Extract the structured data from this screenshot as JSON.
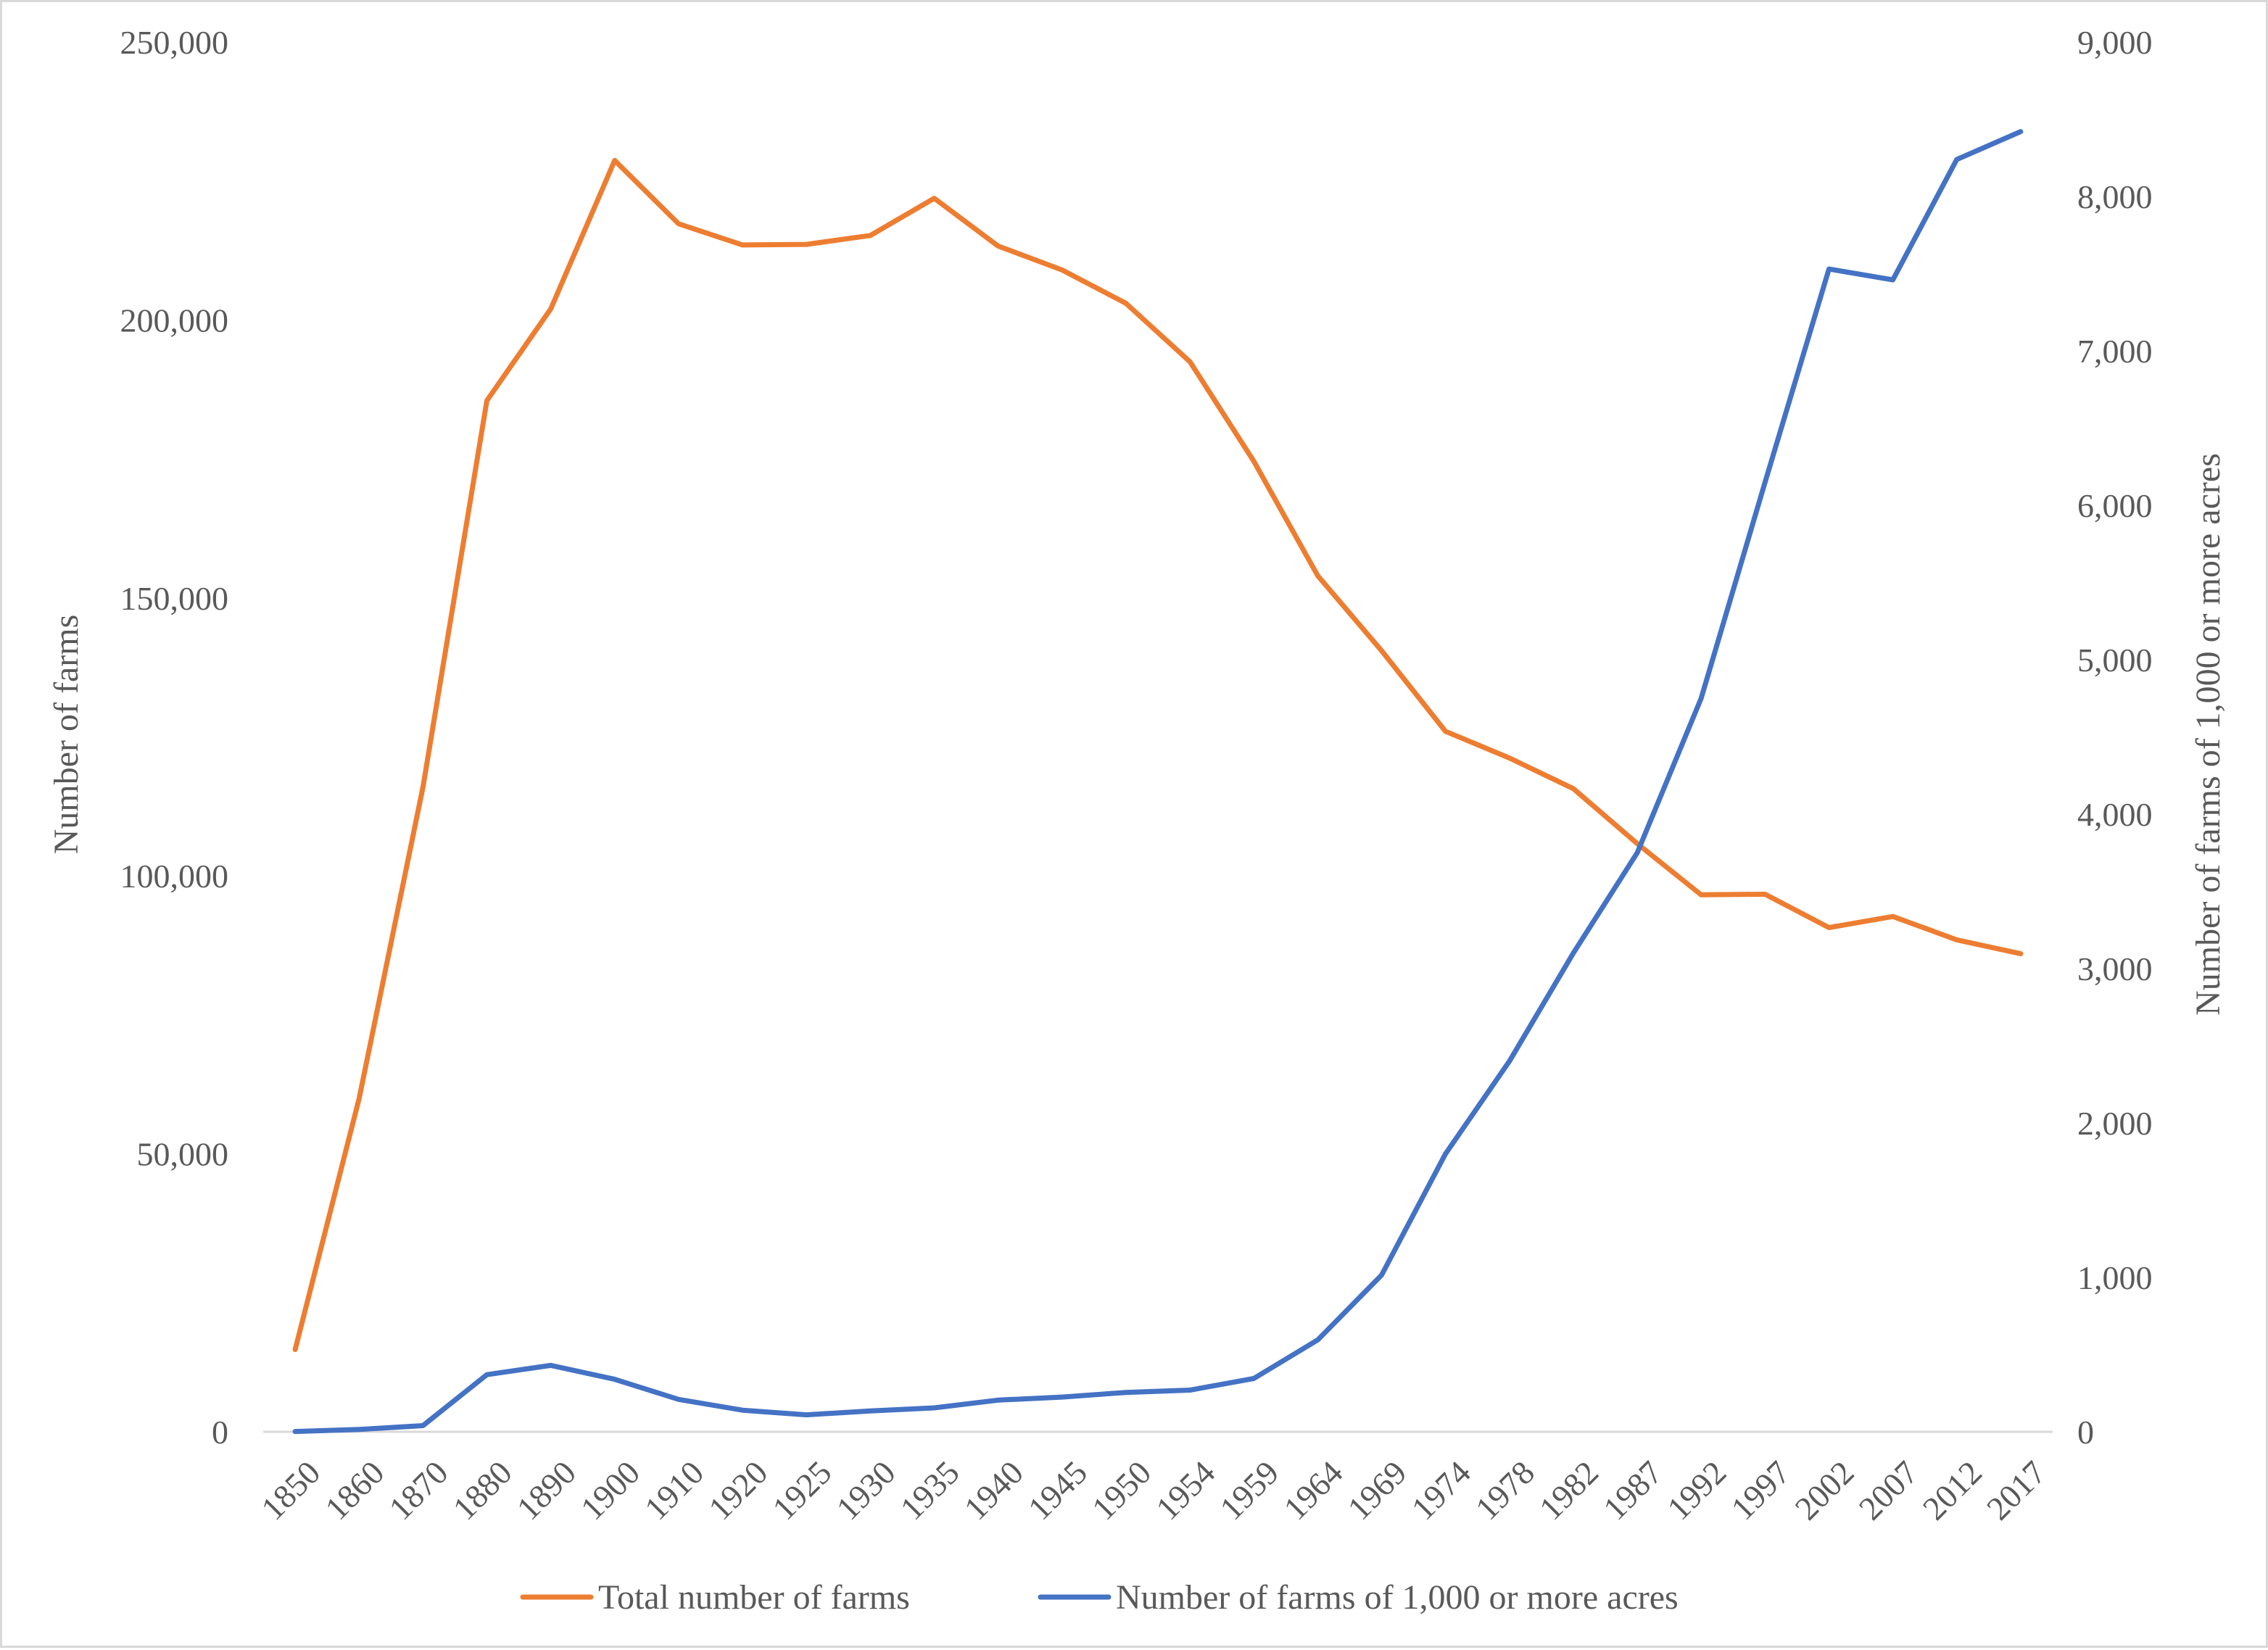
{
  "chart_data": {
    "type": "line",
    "categories": [
      "1850",
      "1860",
      "1870",
      "1880",
      "1890",
      "1900",
      "1910",
      "1920",
      "1925",
      "1930",
      "1935",
      "1940",
      "1945",
      "1950",
      "1954",
      "1959",
      "1964",
      "1969",
      "1974",
      "1978",
      "1982",
      "1987",
      "1992",
      "1997",
      "2002",
      "2007",
      "2012",
      "2017"
    ],
    "title": "",
    "ylabel": "Number of farms",
    "y2label": "Number of farms of 1,000 or more acres",
    "ylim": [
      0,
      250000
    ],
    "y2lim": [
      0,
      9000
    ],
    "yticks": [
      "0",
      "50,000",
      "100,000",
      "150,000",
      "200,000",
      "250,000"
    ],
    "y2ticks": [
      "0",
      "1,000",
      "2,000",
      "3,000",
      "4,000",
      "5,000",
      "6,000",
      "7,000",
      "8,000",
      "9,000"
    ],
    "grid": false,
    "legend_position": "bottom",
    "series": [
      {
        "name": "Total number of farms",
        "axis": "left",
        "color": "#ED7D31",
        "values": [
          14800,
          59900,
          116000,
          185500,
          202000,
          228700,
          217300,
          213500,
          213600,
          215200,
          221900,
          213300,
          209000,
          203000,
          192500,
          174600,
          154000,
          140500,
          126000,
          121200,
          115700,
          105800,
          96600,
          96700,
          90700,
          92700,
          88500,
          86000
        ]
      },
      {
        "name": "Number of farms of 1,000 or more acres",
        "axis": "right",
        "color": "#4472C4",
        "values": [
          2,
          15,
          40,
          370,
          430,
          340,
          210,
          140,
          110,
          135,
          155,
          205,
          225,
          255,
          270,
          345,
          595,
          1015,
          1800,
          2400,
          3100,
          3750,
          4750,
          6150,
          7530,
          7460,
          8240,
          8420
        ]
      }
    ]
  }
}
